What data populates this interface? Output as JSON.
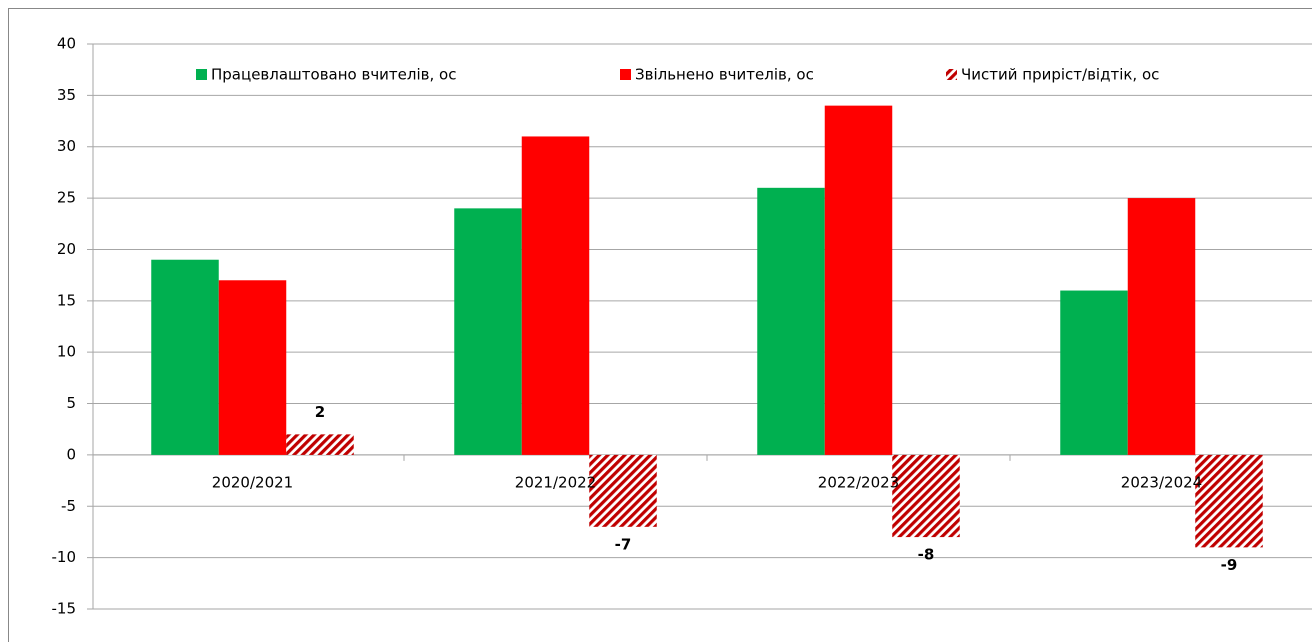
{
  "chart_data": {
    "type": "bar",
    "categories": [
      "2020/2021",
      "2021/2022",
      "2022/2023",
      "2023/2024"
    ],
    "series": [
      {
        "name": "Працевлаштовано вчителів, ос",
        "color": "#00b050",
        "values": [
          19,
          24,
          26,
          16
        ]
      },
      {
        "name": "Звільнено вчителів, ос",
        "color": "#ff0000",
        "values": [
          17,
          31,
          34,
          25
        ]
      },
      {
        "name": "Чистий приріст/відтік, ос",
        "color": "#c00000",
        "pattern": "hatch",
        "data_labels": true,
        "values": [
          2,
          -7,
          -8,
          -9
        ]
      }
    ],
    "ylim": [
      -15,
      40
    ],
    "yticks": [
      -15,
      -10,
      -5,
      0,
      5,
      10,
      15,
      20,
      25,
      30,
      35,
      40
    ],
    "grid": true,
    "legend": "top"
  }
}
